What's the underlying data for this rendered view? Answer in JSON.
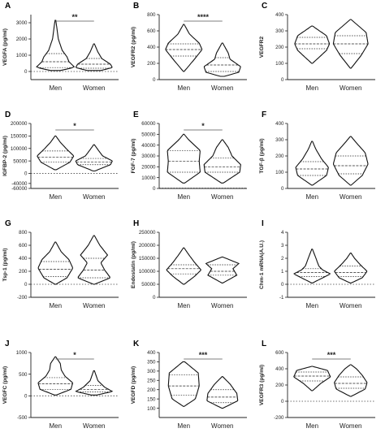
{
  "chart_data": [
    {
      "type": "violin",
      "panel": "A",
      "ylabel": "VEGFA (pg/ml)",
      "ylim": [
        -500,
        3500
      ],
      "yticks": [
        0,
        1000,
        2000,
        3000
      ],
      "categories": [
        "Men",
        "Women"
      ],
      "zero_line": true,
      "significance": "**",
      "violins": [
        {
          "category": "Men",
          "min": 60,
          "max": 3150,
          "halfwidth": 0.55,
          "median": 600,
          "q1": 240,
          "q3": 1100,
          "shape": [
            [
              60,
              0.25
            ],
            [
              260,
              1.0
            ],
            [
              600,
              0.7
            ],
            [
              900,
              0.6
            ],
            [
              1300,
              0.35
            ],
            [
              2000,
              0.15
            ],
            [
              3150,
              0.02
            ]
          ]
        },
        {
          "category": "Women",
          "min": 60,
          "max": 1700,
          "halfwidth": 0.55,
          "median": 450,
          "q1": 200,
          "q3": 800,
          "shape": [
            [
              60,
              0.35
            ],
            [
              240,
              0.95
            ],
            [
              450,
              0.85
            ],
            [
              800,
              0.4
            ],
            [
              1200,
              0.2
            ],
            [
              1700,
              0.02
            ]
          ]
        }
      ]
    },
    {
      "type": "violin",
      "panel": "B",
      "ylabel": "VEGFR2 (pg/ml)",
      "ylim": [
        0,
        800
      ],
      "yticks": [
        0,
        200,
        400,
        600,
        800
      ],
      "categories": [
        "Men",
        "Women"
      ],
      "zero_line": false,
      "significance": "****",
      "violins": [
        {
          "category": "Men",
          "min": 100,
          "max": 680,
          "halfwidth": 0.55,
          "median": 370,
          "q1": 290,
          "q3": 440,
          "shape": [
            [
              100,
              0.02
            ],
            [
              250,
              0.55
            ],
            [
              370,
              0.95
            ],
            [
              450,
              0.8
            ],
            [
              560,
              0.3
            ],
            [
              680,
              0.02
            ]
          ]
        },
        {
          "category": "Women",
          "min": 40,
          "max": 450,
          "halfwidth": 0.55,
          "median": 180,
          "q1": 100,
          "q3": 270,
          "shape": [
            [
              40,
              0.1
            ],
            [
              90,
              0.85
            ],
            [
              160,
              0.95
            ],
            [
              250,
              0.4
            ],
            [
              330,
              0.3
            ],
            [
              450,
              0.02
            ]
          ]
        }
      ]
    },
    {
      "type": "violin",
      "panel": "C",
      "ylabel": "VEGFR2",
      "ylim": [
        0,
        400
      ],
      "yticks": [
        0,
        100,
        200,
        300,
        400
      ],
      "categories": [
        "Men",
        "Women"
      ],
      "zero_line": false,
      "significance": "",
      "violins": [
        {
          "category": "Men",
          "min": 100,
          "max": 330,
          "halfwidth": 0.55,
          "median": 220,
          "q1": 190,
          "q3": 260,
          "shape": [
            [
              100,
              0.02
            ],
            [
              180,
              0.75
            ],
            [
              220,
              0.9
            ],
            [
              270,
              0.75
            ],
            [
              330,
              0.02
            ]
          ]
        },
        {
          "category": "Women",
          "min": 70,
          "max": 370,
          "halfwidth": 0.55,
          "median": 220,
          "q1": 160,
          "q3": 270,
          "shape": [
            [
              70,
              0.02
            ],
            [
              150,
              0.55
            ],
            [
              220,
              0.9
            ],
            [
              290,
              0.8
            ],
            [
              370,
              0.02
            ]
          ]
        }
      ]
    },
    {
      "type": "violin",
      "panel": "D",
      "ylabel": "IGFBP-2 (pg/ml)",
      "ylim": [
        -60000,
        200000
      ],
      "yticks": [
        -60000,
        -40000,
        0,
        50000,
        100000,
        150000,
        200000
      ],
      "categories": [
        "Men",
        "Women"
      ],
      "zero_line": true,
      "significance": "*",
      "violins": [
        {
          "category": "Men",
          "min": 15000,
          "max": 150000,
          "halfwidth": 0.55,
          "median": 65000,
          "q1": 45000,
          "q3": 90000,
          "shape": [
            [
              15000,
              0.05
            ],
            [
              45000,
              0.75
            ],
            [
              70000,
              0.95
            ],
            [
              100000,
              0.55
            ],
            [
              125000,
              0.25
            ],
            [
              150000,
              0.02
            ]
          ]
        },
        {
          "category": "Women",
          "min": 10000,
          "max": 115000,
          "halfwidth": 0.55,
          "median": 45000,
          "q1": 35000,
          "q3": 60000,
          "shape": [
            [
              10000,
              0.05
            ],
            [
              35000,
              0.85
            ],
            [
              50000,
              0.95
            ],
            [
              70000,
              0.45
            ],
            [
              90000,
              0.25
            ],
            [
              115000,
              0.02
            ]
          ]
        }
      ]
    },
    {
      "type": "violin",
      "panel": "E",
      "ylabel": "FGF-7 (pg/ml)",
      "ylim": [
        0,
        60000
      ],
      "yticks": [
        0,
        10000,
        20000,
        30000,
        40000,
        50000,
        60000
      ],
      "categories": [
        "Men",
        "Women"
      ],
      "zero_line": true,
      "significance": "*",
      "violins": [
        {
          "category": "Men",
          "min": 5000,
          "max": 50000,
          "halfwidth": 0.55,
          "median": 25000,
          "q1": 15000,
          "q3": 35000,
          "shape": [
            [
              5000,
              0.05
            ],
            [
              15000,
              0.85
            ],
            [
              25000,
              0.8
            ],
            [
              35000,
              0.85
            ],
            [
              45000,
              0.25
            ],
            [
              50000,
              0.02
            ]
          ]
        },
        {
          "category": "Women",
          "min": 5000,
          "max": 45000,
          "halfwidth": 0.55,
          "median": 20000,
          "q1": 15000,
          "q3": 28000,
          "shape": [
            [
              5000,
              0.05
            ],
            [
              15000,
              0.9
            ],
            [
              22000,
              0.95
            ],
            [
              30000,
              0.5
            ],
            [
              38000,
              0.3
            ],
            [
              45000,
              0.02
            ]
          ]
        }
      ]
    },
    {
      "type": "violin",
      "panel": "F",
      "ylabel": "TGF-β (pg/ml)",
      "ylim": [
        0,
        400
      ],
      "yticks": [
        0,
        100,
        200,
        300,
        400
      ],
      "categories": [
        "Men",
        "Women"
      ],
      "zero_line": false,
      "significance": "",
      "violins": [
        {
          "category": "Men",
          "min": 20,
          "max": 290,
          "halfwidth": 0.55,
          "median": 120,
          "q1": 80,
          "q3": 165,
          "shape": [
            [
              20,
              0.02
            ],
            [
              80,
              0.75
            ],
            [
              130,
              0.85
            ],
            [
              180,
              0.5
            ],
            [
              240,
              0.2
            ],
            [
              290,
              0.02
            ]
          ]
        },
        {
          "category": "Women",
          "min": 20,
          "max": 320,
          "halfwidth": 0.55,
          "median": 140,
          "q1": 90,
          "q3": 200,
          "shape": [
            [
              20,
              0.02
            ],
            [
              80,
              0.6
            ],
            [
              150,
              0.9
            ],
            [
              220,
              0.75
            ],
            [
              280,
              0.3
            ],
            [
              320,
              0.02
            ]
          ]
        }
      ]
    },
    {
      "type": "violin",
      "panel": "G",
      "ylabel": "Tsp-1 (pg/ml)",
      "ylim": [
        -200,
        800
      ],
      "yticks": [
        -200,
        0,
        200,
        400,
        600,
        800
      ],
      "categories": [
        "Men",
        "Women"
      ],
      "zero_line": true,
      "significance": "",
      "violins": [
        {
          "category": "Men",
          "min": 0,
          "max": 650,
          "halfwidth": 0.55,
          "median": 230,
          "q1": 120,
          "q3": 350,
          "shape": [
            [
              0,
              0.02
            ],
            [
              100,
              0.6
            ],
            [
              250,
              0.9
            ],
            [
              380,
              0.7
            ],
            [
              500,
              0.3
            ],
            [
              650,
              0.02
            ]
          ]
        },
        {
          "category": "Women",
          "min": 0,
          "max": 750,
          "halfwidth": 0.55,
          "median": 220,
          "q1": 100,
          "q3": 400,
          "shape": [
            [
              0,
              0.02
            ],
            [
              100,
              0.85
            ],
            [
              220,
              0.55
            ],
            [
              330,
              0.35
            ],
            [
              450,
              0.7
            ],
            [
              600,
              0.3
            ],
            [
              750,
              0.02
            ]
          ]
        }
      ]
    },
    {
      "type": "violin",
      "panel": "H",
      "ylabel": "Endostatin (pg/ml)",
      "ylim": [
        0,
        250000
      ],
      "yticks": [
        0,
        50000,
        100000,
        150000,
        200000,
        250000
      ],
      "categories": [
        "Men",
        "Women"
      ],
      "zero_line": false,
      "significance": "",
      "violins": [
        {
          "category": "Men",
          "min": 50000,
          "max": 190000,
          "halfwidth": 0.55,
          "median": 110000,
          "q1": 90000,
          "q3": 125000,
          "shape": [
            [
              50000,
              0.02
            ],
            [
              80000,
              0.55
            ],
            [
              105000,
              0.9
            ],
            [
              135000,
              0.55
            ],
            [
              165000,
              0.25
            ],
            [
              190000,
              0.02
            ]
          ]
        },
        {
          "category": "Women",
          "min": 55000,
          "max": 155000,
          "halfwidth": 0.55,
          "median": 100000,
          "q1": 85000,
          "q3": 125000,
          "shape": [
            [
              55000,
              0.02
            ],
            [
              85000,
              0.75
            ],
            [
              110000,
              0.55
            ],
            [
              130000,
              0.85
            ],
            [
              155000,
              0.02
            ]
          ]
        }
      ]
    },
    {
      "type": "violin",
      "panel": "I",
      "ylabel": "Chm-1 mRNA(A.U.)",
      "ylim": [
        -1,
        4
      ],
      "yticks": [
        -1,
        0,
        1,
        2,
        3,
        4
      ],
      "categories": [
        "Men",
        "Women"
      ],
      "zero_line": true,
      "significance": "",
      "violins": [
        {
          "category": "Men",
          "min": 0.1,
          "max": 2.7,
          "halfwidth": 0.55,
          "median": 0.9,
          "q1": 0.6,
          "q3": 1.2,
          "shape": [
            [
              0.1,
              0.02
            ],
            [
              0.5,
              0.55
            ],
            [
              0.8,
              0.95
            ],
            [
              1.1,
              0.55
            ],
            [
              1.4,
              0.35
            ],
            [
              1.8,
              0.25
            ],
            [
              2.2,
              0.15
            ],
            [
              2.7,
              0.02
            ]
          ]
        },
        {
          "category": "Women",
          "min": 0.1,
          "max": 2.4,
          "halfwidth": 0.55,
          "median": 0.9,
          "q1": 0.6,
          "q3": 1.4,
          "shape": [
            [
              0.1,
              0.02
            ],
            [
              0.5,
              0.6
            ],
            [
              1.0,
              0.85
            ],
            [
              1.5,
              0.5
            ],
            [
              2.0,
              0.2
            ],
            [
              2.4,
              0.02
            ]
          ]
        }
      ]
    },
    {
      "type": "violin",
      "panel": "J",
      "ylabel": "VEGFC (pg/ml)",
      "ylim": [
        -500,
        1000
      ],
      "yticks": [
        -500,
        0,
        500,
        1000
      ],
      "categories": [
        "Men",
        "Women"
      ],
      "zero_line": true,
      "significance": "*",
      "violins": [
        {
          "category": "Men",
          "min": 20,
          "max": 900,
          "halfwidth": 0.55,
          "median": 280,
          "q1": 150,
          "q3": 420,
          "shape": [
            [
              20,
              0.05
            ],
            [
              150,
              0.8
            ],
            [
              300,
              0.9
            ],
            [
              450,
              0.5
            ],
            [
              600,
              0.3
            ],
            [
              750,
              0.25
            ],
            [
              900,
              0.02
            ]
          ]
        },
        {
          "category": "Women",
          "min": 20,
          "max": 580,
          "halfwidth": 0.55,
          "median": 150,
          "q1": 90,
          "q3": 240,
          "shape": [
            [
              20,
              0.15
            ],
            [
              100,
              0.95
            ],
            [
              200,
              0.55
            ],
            [
              350,
              0.2
            ],
            [
              580,
              0.02
            ]
          ]
        }
      ]
    },
    {
      "type": "violin",
      "panel": "K",
      "ylabel": "VEGFD (pg/ml)",
      "ylim": [
        50,
        400
      ],
      "yticks": [
        100,
        150,
        200,
        250,
        300,
        350,
        400
      ],
      "categories": [
        "Men",
        "Women"
      ],
      "zero_line": false,
      "significance": "***",
      "violins": [
        {
          "category": "Men",
          "min": 110,
          "max": 350,
          "halfwidth": 0.55,
          "median": 220,
          "q1": 170,
          "q3": 280,
          "shape": [
            [
              110,
              0.02
            ],
            [
              150,
              0.6
            ],
            [
              220,
              0.8
            ],
            [
              290,
              0.75
            ],
            [
              350,
              0.05
            ]
          ]
        },
        {
          "category": "Women",
          "min": 100,
          "max": 270,
          "halfwidth": 0.55,
          "median": 160,
          "q1": 130,
          "q3": 200,
          "shape": [
            [
              100,
              0.02
            ],
            [
              140,
              0.8
            ],
            [
              180,
              0.75
            ],
            [
              230,
              0.4
            ],
            [
              270,
              0.02
            ]
          ]
        }
      ]
    },
    {
      "type": "violin",
      "panel": "L",
      "ylabel": "VEGFR3 (pg/ml)",
      "ylim": [
        -200,
        600
      ],
      "yticks": [
        -200,
        0,
        200,
        400,
        600
      ],
      "categories": [
        "Men",
        "Women"
      ],
      "zero_line": true,
      "significance": "***",
      "violins": [
        {
          "category": "Men",
          "min": 130,
          "max": 430,
          "halfwidth": 0.55,
          "median": 310,
          "q1": 250,
          "q3": 360,
          "shape": [
            [
              130,
              0.02
            ],
            [
              220,
              0.45
            ],
            [
              300,
              0.95
            ],
            [
              380,
              0.8
            ],
            [
              430,
              0.02
            ]
          ]
        },
        {
          "category": "Women",
          "min": 60,
          "max": 450,
          "halfwidth": 0.55,
          "median": 220,
          "q1": 160,
          "q3": 300,
          "shape": [
            [
              60,
              0.02
            ],
            [
              150,
              0.75
            ],
            [
              230,
              0.85
            ],
            [
              320,
              0.6
            ],
            [
              400,
              0.3
            ],
            [
              450,
              0.02
            ]
          ]
        }
      ]
    }
  ]
}
